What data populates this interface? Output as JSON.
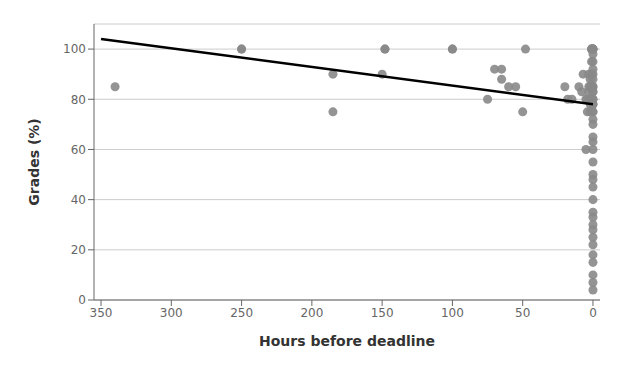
{
  "chart_data": {
    "type": "scatter",
    "xlabel": "Hours before deadline",
    "ylabel": "Grades (%)",
    "xlim": [
      355,
      -5
    ],
    "ylim": [
      0,
      110
    ],
    "xticks": [
      350,
      300,
      250,
      200,
      150,
      100,
      50,
      0
    ],
    "yticks": [
      0,
      20,
      40,
      60,
      80,
      100
    ],
    "grid": true,
    "series": [
      {
        "type": "scatter",
        "color": "#888888",
        "x": [
          340,
          250,
          250,
          185,
          185,
          150,
          148,
          148,
          100,
          100,
          75,
          70,
          65,
          65,
          60,
          55,
          50,
          48,
          20,
          18,
          15,
          10,
          8,
          7,
          5,
          5,
          4,
          4,
          3,
          3,
          3,
          2,
          2,
          2,
          2,
          1,
          1,
          1,
          1,
          1,
          1,
          1,
          0,
          0,
          0,
          0,
          0,
          0,
          0,
          0,
          0,
          0,
          0,
          0,
          0,
          0,
          0,
          0,
          0,
          0,
          0,
          0,
          0,
          0,
          0,
          0,
          0,
          0,
          0,
          0,
          0,
          0,
          0,
          0,
          0,
          0,
          0,
          0,
          0,
          0,
          0,
          0
        ],
        "values": [
          85,
          100,
          100,
          90,
          75,
          90,
          100,
          100,
          100,
          100,
          80,
          92,
          92,
          88,
          85,
          85,
          75,
          100,
          85,
          80,
          80,
          85,
          83,
          90,
          80,
          60,
          80,
          75,
          85,
          83,
          90,
          88,
          85,
          78,
          75,
          100,
          100,
          100,
          95,
          90,
          85,
          80,
          100,
          100,
          100,
          100,
          98,
          95,
          92,
          90,
          88,
          85,
          85,
          83,
          83,
          80,
          80,
          78,
          78,
          75,
          75,
          72,
          70,
          65,
          63,
          60,
          55,
          50,
          48,
          45,
          40,
          35,
          33,
          30,
          28,
          25,
          22,
          18,
          15,
          10,
          7,
          4
        ]
      },
      {
        "type": "line",
        "color": "#000000",
        "x": [
          350,
          0
        ],
        "values": [
          104,
          78
        ]
      }
    ]
  }
}
